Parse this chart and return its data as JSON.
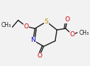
{
  "bg_color": "#f2f2f2",
  "line_color": "#1a1a1a",
  "atom_colors": {
    "N": "#0000bb",
    "O": "#cc0000",
    "S": "#bb8800"
  },
  "font_size_atom": 6.5,
  "font_size_small": 5.5,
  "lw": 1.0
}
